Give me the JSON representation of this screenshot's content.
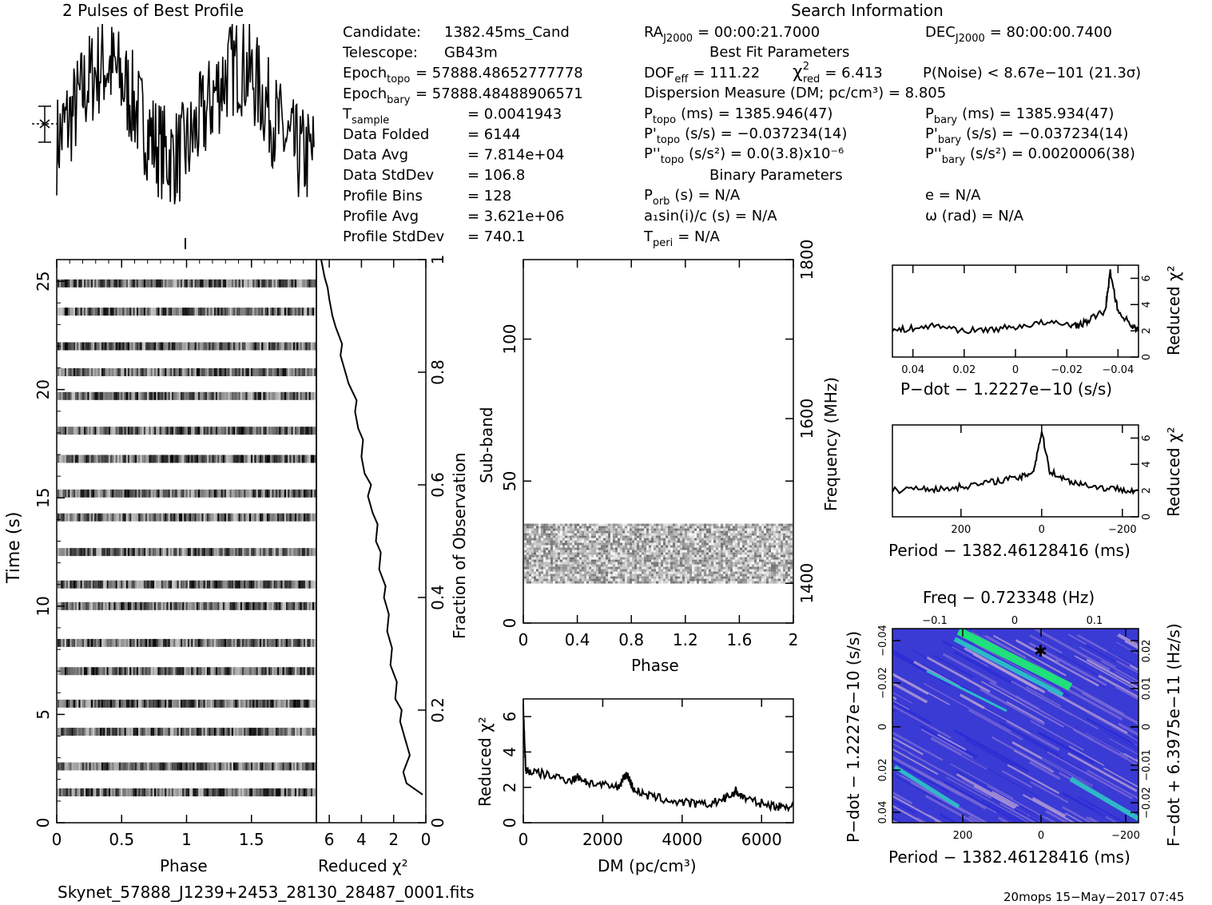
{
  "header": {
    "profile_title": "2 Pulses of Best Profile",
    "search_title": "Search Information"
  },
  "info": {
    "col1": [
      {
        "label": "Candidate:",
        "value": "1382.45ms_Cand"
      },
      {
        "label": "Telescope:",
        "value": "GB43m"
      },
      {
        "label": "Epoch",
        "sub": "topo",
        "value": "= 57888.48652777778"
      },
      {
        "label": "Epoch",
        "sub": "bary",
        "value": "= 57888.48488906571"
      },
      {
        "label": "T",
        "sub": "sample",
        "value": "=   0.0041943"
      },
      {
        "label": "Data Folded",
        "value": "=   6144"
      },
      {
        "label": "Data Avg",
        "value": "=   7.814e+04"
      },
      {
        "label": "Data StdDev",
        "value": "=   106.8"
      },
      {
        "label": "Profile Bins",
        "value": "=   128"
      },
      {
        "label": "Profile Avg",
        "value": "=   3.621e+06"
      },
      {
        "label": "Profile StdDev",
        "value": "=   740.1"
      }
    ],
    "ra": {
      "label": "RA",
      "sub": "J2000",
      "value": "= 00:00:21.7000"
    },
    "dec": {
      "label": "DEC",
      "sub": "J2000",
      "value": "= 80:00:00.7400"
    },
    "best_fit_title": "Best Fit Parameters",
    "dof": {
      "label": "DOF",
      "sub": "eff",
      "value": "= 111.22"
    },
    "chi2": {
      "label": "χ",
      "sup": "2",
      "sub": "red",
      "value": "= 6.413"
    },
    "noise": "P(Noise) < 8.67e−101   (21.3σ)",
    "dm": "Dispersion Measure (DM; pc/cm³) = 8.805",
    "p_topo": {
      "label": "P",
      "sub": "topo",
      "value": "(ms)  =   1385.946(47)"
    },
    "p_bary": {
      "label": "P",
      "sub": "bary",
      "value": "(ms)  =   1385.934(47)"
    },
    "pd_topo": {
      "label": "P'",
      "sub": "topo",
      "value": "(s/s) = −0.037234(14)"
    },
    "pd_bary": {
      "label": "P'",
      "sub": "bary",
      "value": "(s/s) = −0.037234(14)"
    },
    "pdd_topo": {
      "label": "P''",
      "sub": "topo",
      "value": "(s/s²) = 0.0(3.8)x10⁻⁶"
    },
    "pdd_bary": {
      "label": "P''",
      "sub": "bary",
      "value": "(s/s²) =   0.0020006(38)"
    },
    "binary_title": "Binary Parameters",
    "porb": {
      "label": "P",
      "sub": "orb",
      "value": "(s) = N/A"
    },
    "ecc": "e = N/A",
    "asini": "a₁sin(i)/c (s) = N/A",
    "omega": "ω (rad) = N/A",
    "tperi": {
      "label": "T",
      "sub": "peri",
      "value": "= N/A"
    }
  },
  "footer": {
    "filename": "Skynet_57888_J1239+2453_28130_28487_0001.fits",
    "stamp": "20mops 15−May−2017 07:45"
  },
  "chart_data": [
    {
      "type": "line",
      "name": "profile",
      "title": "2 Pulses of Best Profile",
      "note": "noisy two-pulse profile, peaks near phase 0.5 and 1.5",
      "series": [
        {
          "values": [
            0.35,
            0.45,
            0.52,
            0.62,
            0.7,
            0.76,
            0.78,
            0.75,
            0.68,
            0.6,
            0.5,
            0.42,
            0.35,
            0.3,
            0.28,
            0.3,
            0.35,
            0.45,
            0.52,
            0.62,
            0.7,
            0.76,
            0.78,
            0.75,
            0.68,
            0.6,
            0.5,
            0.42,
            0.35,
            0.3,
            0.28,
            0.3
          ]
        }
      ]
    },
    {
      "type": "heatmap",
      "name": "time-phase",
      "xlabel": "Phase",
      "ylabel": "Time (s)",
      "xlim": [
        0,
        2
      ],
      "ylim": [
        0,
        26
      ],
      "xticks": [
        "0",
        "0.5",
        "1",
        "1.5"
      ],
      "yticks": [
        "0",
        "5",
        "10",
        "15",
        "20",
        "25"
      ],
      "bands_time_s": [
        1.4,
        2.6,
        4.2,
        5.5,
        7.0,
        8.3,
        10.0,
        11.0,
        12.5,
        14.1,
        15.2,
        16.8,
        18.1,
        19.7,
        20.8,
        22.0,
        23.6,
        24.9
      ]
    },
    {
      "type": "line",
      "name": "chi2-vs-time",
      "xlabel": "Reduced χ²",
      "ylabel": "Fraction of Observation",
      "xlim": [
        6.8,
        0
      ],
      "ylim": [
        0,
        1
      ],
      "xticks": [
        "6",
        "4",
        "2",
        "0"
      ],
      "yticks": [
        "0",
        "0.2",
        "0.4",
        "0.6",
        "0.8",
        "1"
      ],
      "x": [
        0.2,
        1.2,
        1.4,
        1.0,
        1.3,
        1.6,
        1.5,
        1.9,
        1.8,
        2.2,
        2.1,
        2.4,
        2.3,
        2.6,
        2.5,
        2.9,
        2.8,
        3.1,
        3.0,
        3.3,
        3.6,
        3.4,
        3.8,
        4.0,
        3.9,
        4.2,
        4.4,
        4.3,
        4.8,
        5.0,
        5.3,
        5.2,
        5.6,
        5.8,
        6.0,
        6.1,
        6.3,
        6.5
      ],
      "y": [
        0.05,
        0.07,
        0.09,
        0.12,
        0.15,
        0.18,
        0.2,
        0.22,
        0.25,
        0.28,
        0.31,
        0.34,
        0.37,
        0.4,
        0.42,
        0.45,
        0.48,
        0.5,
        0.53,
        0.55,
        0.58,
        0.6,
        0.62,
        0.65,
        0.68,
        0.7,
        0.73,
        0.75,
        0.78,
        0.8,
        0.83,
        0.85,
        0.88,
        0.9,
        0.93,
        0.95,
        0.97,
        1.0
      ]
    },
    {
      "type": "heatmap",
      "name": "subband-phase",
      "xlabel": "Phase",
      "ylabel": "Sub-band",
      "y2label": "Frequency (MHz)",
      "xlim": [
        0,
        2
      ],
      "ylim": [
        0,
        128
      ],
      "xticks": [
        "0",
        "0.4",
        "0.8",
        "1.2",
        "1.6",
        "2"
      ],
      "yticks": [
        "0",
        "50",
        "100"
      ],
      "y2ticks": [
        "1400",
        "1600",
        "1800"
      ],
      "filled_subbands": [
        14,
        35
      ]
    },
    {
      "type": "line",
      "name": "chi2-vs-dm",
      "xlabel": "DM (pc/cm³)",
      "ylabel": "Reduced χ²",
      "xlim": [
        0,
        6800
      ],
      "ylim": [
        0,
        7
      ],
      "xticks": [
        "0",
        "2000",
        "4000",
        "6000"
      ],
      "yticks": [
        "0",
        "2",
        "4",
        "6"
      ],
      "x": [
        0,
        60,
        150,
        400,
        800,
        1200,
        1400,
        1600,
        2000,
        2400,
        2550,
        2650,
        2750,
        3000,
        3400,
        3800,
        4200,
        4600,
        5000,
        5200,
        5350,
        5500,
        5800,
        6200,
        6500,
        6800
      ],
      "y": [
        6.5,
        3.0,
        2.9,
        2.8,
        2.6,
        2.4,
        2.6,
        2.3,
        2.1,
        2.0,
        2.7,
        2.6,
        2.0,
        1.6,
        1.4,
        1.2,
        1.1,
        1.0,
        1.3,
        1.5,
        1.8,
        1.5,
        1.2,
        1.0,
        0.9,
        1.0
      ]
    },
    {
      "type": "line",
      "name": "chi2-vs-pdot",
      "xlabel": "P−dot − 1.2227e−10 (s/s)",
      "ylabel": "Reduced χ²",
      "xlim": [
        0.048,
        -0.048
      ],
      "ylim": [
        0,
        7
      ],
      "xticks": [
        "0.04",
        "0.02",
        "0",
        "−0.02",
        "−0.04"
      ],
      "yticks": [
        "0",
        "2",
        "4",
        "6"
      ],
      "x": [
        0.048,
        0.04,
        0.03,
        0.02,
        0.01,
        0,
        -0.01,
        -0.02,
        -0.025,
        -0.03,
        -0.035,
        -0.037,
        -0.04,
        -0.045,
        -0.048
      ],
      "y": [
        2.0,
        2.2,
        2.4,
        2.0,
        2.1,
        2.3,
        2.6,
        2.5,
        2.4,
        3.0,
        3.5,
        6.5,
        3.5,
        2.5,
        2.0
      ]
    },
    {
      "type": "line",
      "name": "chi2-vs-period",
      "xlabel": "Period − 1382.46128416 (ms)",
      "ylabel": "Reduced χ²",
      "xlim": [
        370,
        -240
      ],
      "ylim": [
        0,
        7
      ],
      "xticks": [
        "200",
        "0",
        "−200"
      ],
      "yticks": [
        "0",
        "2",
        "4",
        "6"
      ],
      "x": [
        370,
        300,
        250,
        200,
        150,
        100,
        50,
        20,
        0,
        -20,
        -60,
        -100,
        -150,
        -200,
        -240
      ],
      "y": [
        2.0,
        2.2,
        2.1,
        2.3,
        2.5,
        2.8,
        3.0,
        3.5,
        6.5,
        3.5,
        2.8,
        2.5,
        2.2,
        2.1,
        2.0
      ]
    },
    {
      "type": "heatmap",
      "name": "period-pdot",
      "title": "Freq − 0.723348 (Hz)",
      "xlabel": "Period − 1382.46128416 (ms)",
      "ylabel": "P−dot − 1.2227e−10 (s/s)",
      "y2label": "F−dot + 6.3975e−11 (Hz/s)",
      "xticks": [
        "200",
        "0",
        "−200"
      ],
      "x2ticks": [
        "−0.1",
        "0",
        "0.1"
      ],
      "yticks": [
        "−0.04",
        "−0.02",
        "0",
        "0.02",
        "0.04"
      ],
      "y2ticks": [
        "0.02",
        "0.01",
        "0",
        "−0.01",
        "−0.02"
      ],
      "colors": [
        "#2b2bd6",
        "#7a6ad8",
        "#b7a0d6",
        "#2fb8c8",
        "#1fe07a"
      ]
    }
  ]
}
